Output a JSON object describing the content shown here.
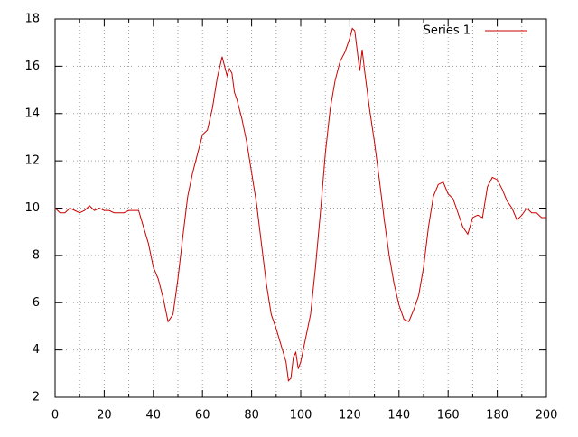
{
  "chart_data": {
    "type": "line",
    "x": [
      0,
      2,
      4,
      6,
      8,
      10,
      12,
      14,
      16,
      18,
      20,
      22,
      24,
      26,
      28,
      30,
      32,
      34,
      36,
      38,
      40,
      42,
      44,
      46,
      48,
      50,
      52,
      54,
      56,
      58,
      60,
      62,
      64,
      66,
      68,
      70,
      71,
      72,
      73,
      74,
      76,
      78,
      80,
      82,
      84,
      86,
      88,
      90,
      92,
      94,
      95,
      96,
      97,
      98,
      99,
      100,
      102,
      104,
      106,
      108,
      110,
      112,
      114,
      116,
      118,
      120,
      121,
      122,
      124,
      125,
      126,
      128,
      130,
      132,
      134,
      136,
      138,
      140,
      142,
      144,
      146,
      148,
      150,
      152,
      154,
      156,
      158,
      160,
      162,
      164,
      166,
      168,
      170,
      172,
      174,
      176,
      178,
      180,
      182,
      184,
      186,
      188,
      190,
      192,
      194,
      196,
      198,
      200
    ],
    "series": [
      {
        "name": "Series 1",
        "color": "#cc0000",
        "values": [
          10.0,
          9.8,
          9.8,
          10.0,
          9.9,
          9.8,
          9.9,
          10.1,
          9.9,
          10.0,
          9.9,
          9.9,
          9.8,
          9.8,
          9.8,
          9.9,
          9.9,
          9.9,
          9.2,
          8.5,
          7.5,
          7.0,
          6.2,
          5.2,
          5.5,
          7.0,
          8.8,
          10.5,
          11.5,
          12.3,
          13.1,
          13.3,
          14.2,
          15.5,
          16.4,
          15.6,
          15.9,
          15.7,
          14.9,
          14.6,
          13.8,
          12.8,
          11.5,
          10.2,
          8.5,
          6.8,
          5.5,
          4.9,
          4.2,
          3.5,
          2.7,
          2.8,
          3.7,
          3.9,
          3.2,
          3.5,
          4.5,
          5.5,
          7.5,
          9.8,
          12.3,
          14.2,
          15.4,
          16.2,
          16.6,
          17.2,
          17.6,
          17.5,
          15.8,
          16.7,
          15.8,
          14.2,
          12.8,
          11.2,
          9.5,
          8.0,
          6.8,
          5.9,
          5.3,
          5.2,
          5.7,
          6.3,
          7.5,
          9.2,
          10.5,
          11.0,
          11.1,
          10.6,
          10.4,
          9.8,
          9.2,
          8.9,
          9.6,
          9.7,
          9.6,
          10.9,
          11.3,
          11.2,
          10.8,
          10.3,
          10.0,
          9.5,
          9.7,
          10.0,
          9.8,
          9.8,
          9.6,
          9.6
        ]
      }
    ],
    "xlim": [
      0,
      200
    ],
    "ylim": [
      2,
      18
    ],
    "xticks": [
      0,
      20,
      40,
      60,
      80,
      100,
      120,
      140,
      160,
      180,
      200
    ],
    "xminorticks": [
      10,
      30,
      50,
      70,
      90,
      110,
      130,
      150,
      170,
      190
    ],
    "yticks": [
      2,
      4,
      6,
      8,
      10,
      12,
      14,
      16,
      18
    ],
    "grid": true,
    "legend": "top-right"
  }
}
